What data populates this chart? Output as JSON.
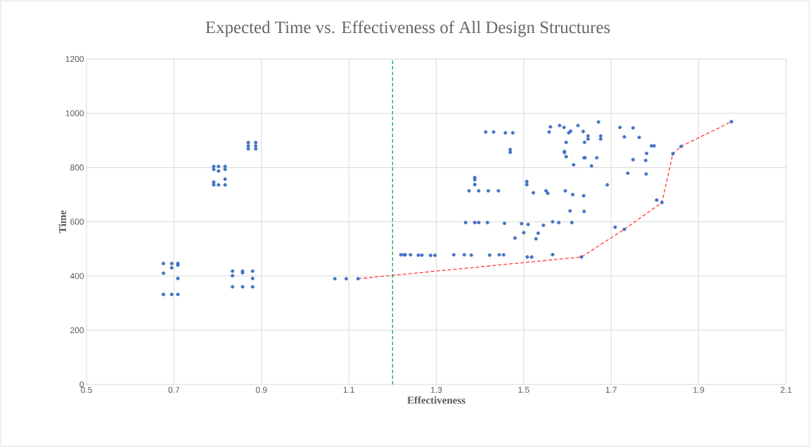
{
  "chart_data": {
    "type": "scatter",
    "title": "Expected Time vs. Effectiveness of All Design Structures",
    "xlabel": "Effectiveness",
    "ylabel": "Time",
    "xlim": [
      0.5,
      2.1
    ],
    "xticks": [
      0.5,
      0.7,
      0.9,
      1.1,
      1.3,
      1.5,
      1.7,
      1.9,
      2.1
    ],
    "ylim": [
      0,
      1200
    ],
    "yticks": [
      0,
      200,
      400,
      600,
      800,
      1000,
      1200
    ],
    "grid": true,
    "ref_lines": [
      {
        "axis": "x",
        "value": 1.2,
        "color": "#00b050",
        "line_style": "dashed"
      }
    ],
    "series": [
      {
        "marker": "circle",
        "color": "#4472c4",
        "x": [
          0.676,
          0.695,
          0.709,
          0.709,
          0.695,
          0.676,
          0.709,
          0.676,
          0.695,
          0.709,
          0.834,
          0.857,
          0.88,
          0.857,
          0.834,
          0.88,
          0.834,
          0.857,
          0.88,
          0.791,
          0.802,
          0.817,
          0.791,
          0.817,
          0.802,
          0.817,
          0.791,
          0.791,
          0.802,
          0.817,
          0.87,
          0.887,
          0.87,
          0.887,
          0.87,
          0.887,
          1.068,
          1.094,
          1.121,
          1.219,
          1.226,
          1.229,
          1.241,
          1.259,
          1.267,
          1.287,
          1.297,
          1.34,
          1.364,
          1.38,
          1.422,
          1.444,
          1.454,
          1.413,
          1.431,
          1.458,
          1.475,
          1.469,
          1.469,
          1.388,
          1.388,
          1.388,
          1.375,
          1.397,
          1.419,
          1.442,
          1.367,
          1.388,
          1.397,
          1.417,
          1.456,
          1.495,
          1.51,
          1.5,
          1.533,
          1.48,
          1.528,
          1.545,
          1.566,
          1.58,
          1.61,
          1.508,
          1.518,
          1.566,
          1.507,
          1.507,
          1.522,
          1.551,
          1.555,
          1.595,
          1.612,
          1.606,
          1.582,
          1.561,
          1.558,
          1.592,
          1.607,
          1.603,
          1.597,
          1.593,
          1.593,
          1.597,
          1.614,
          1.624,
          1.671,
          1.636,
          1.647,
          1.647,
          1.676,
          1.676,
          1.639,
          1.638,
          1.64,
          1.667,
          1.655,
          1.72,
          1.75,
          1.73,
          1.764,
          1.792,
          1.798,
          1.781,
          1.75,
          1.779,
          1.841,
          1.86,
          1.738,
          1.78,
          1.691,
          1.637,
          1.638,
          1.804,
          1.816,
          1.709,
          1.73,
          1.632,
          1.975
        ],
        "values": [
          446,
          446,
          446,
          440,
          430,
          410,
          391,
          332,
          332,
          332,
          418,
          418,
          418,
          412,
          401,
          391,
          360,
          360,
          360,
          804,
          804,
          804,
          793,
          793,
          787,
          757,
          746,
          736,
          736,
          736,
          892,
          892,
          880,
          880,
          869,
          869,
          390,
          390,
          390,
          478,
          478,
          478,
          478,
          477,
          477,
          476,
          476,
          478,
          478,
          477,
          477,
          478,
          478,
          931,
          931,
          928,
          928,
          866,
          856,
          763,
          755,
          737,
          714,
          714,
          714,
          714,
          597,
          597,
          597,
          597,
          594,
          593,
          590,
          560,
          558,
          540,
          537,
          587,
          600,
          597,
          597,
          470,
          470,
          479,
          748,
          737,
          707,
          714,
          705,
          714,
          700,
          640,
          955,
          950,
          931,
          948,
          934,
          928,
          893,
          859,
          855,
          840,
          810,
          955,
          968,
          933,
          916,
          905,
          916,
          905,
          893,
          836,
          836,
          836,
          806,
          948,
          946,
          913,
          911,
          880,
          880,
          852,
          829,
          826,
          851,
          878,
          779,
          776,
          736,
          696,
          638,
          680,
          671,
          580,
          572,
          470,
          969
        ]
      },
      {
        "type": "line",
        "marker": "none",
        "line_style": "dashed",
        "color": "#ff3b3b",
        "x": [
          1.121,
          1.632,
          1.73,
          1.816,
          1.841,
          1.86,
          1.975
        ],
        "values": [
          390,
          470,
          572,
          671,
          851,
          878,
          969
        ]
      }
    ]
  }
}
